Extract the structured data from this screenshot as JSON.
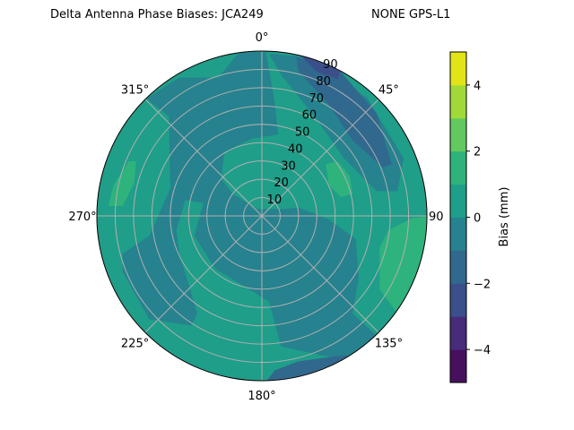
{
  "chart_data": {
    "type": "polar-contour",
    "title_left": "Delta Antenna Phase Biases: JCA249",
    "title_right": "NONE GPS-L1",
    "angular_ticks": [
      "0°",
      "45°",
      "90",
      "135°",
      "180°",
      "225°",
      "270°",
      "315°"
    ],
    "radial_ticks": [
      "10",
      "20",
      "30",
      "40",
      "50",
      "60",
      "70",
      "80",
      "90"
    ],
    "radial_range": [
      0,
      90
    ],
    "grid": true,
    "colorbar": {
      "label": "Bias (mm)",
      "levels": [
        -5,
        -4,
        -3,
        -2,
        -1,
        0,
        1,
        2,
        3,
        4,
        5
      ],
      "tick_labels": [
        "4",
        "2",
        "0",
        "−2",
        "−4"
      ],
      "tick_values": [
        4,
        2,
        0,
        -2,
        -4
      ],
      "colormap": "viridis",
      "colors": [
        "#46105f",
        "#472c7a",
        "#3b4f8a",
        "#31688e",
        "#26828e",
        "#1f9e89",
        "#2eb37c",
        "#62c960",
        "#a0da39",
        "#e2e418"
      ]
    },
    "observed_range_mm": [
      -3,
      2
    ]
  }
}
